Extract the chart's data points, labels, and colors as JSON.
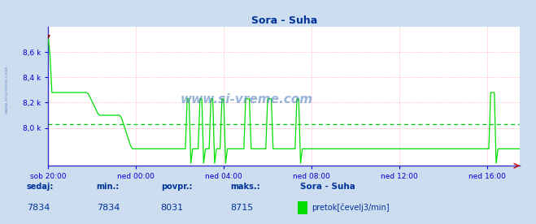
{
  "title": "Sora - Suha",
  "title_color": "#003399",
  "bg_color": "#ccddf0",
  "plot_bg_color": "#ffffff",
  "grid_color": "#ffaaaa",
  "line_color": "#00dd00",
  "axis_color": "#3333cc",
  "tick_color": "#0000cc",
  "ylabel_values": [
    "8,0 k",
    "8,2 k",
    "8,4 k",
    "8,6 k"
  ],
  "yticks": [
    8000,
    8200,
    8400,
    8600
  ],
  "ylim_min": 7700,
  "ylim_max": 8800,
  "xlim_min": 0,
  "xlim_max": 21.5,
  "xtick_labels": [
    "sob 20:00",
    "ned 00:00",
    "ned 04:00",
    "ned 08:00",
    "ned 12:00",
    "ned 16:00"
  ],
  "xtick_positions": [
    0,
    4,
    8,
    12,
    16,
    20
  ],
  "mean_value": 8031,
  "mean_color": "#00cc00",
  "sedaj": 7834,
  "min_val": 7834,
  "povpr": 8031,
  "maks": 8715,
  "legend_label": "pretok[čevelj3/min]",
  "legend_station": "Sora - Suha",
  "watermark": "www.si-vreme.com",
  "watermark_color": "#4477bb",
  "arrow_color": "#cc0000",
  "spike_bottom": 7720
}
